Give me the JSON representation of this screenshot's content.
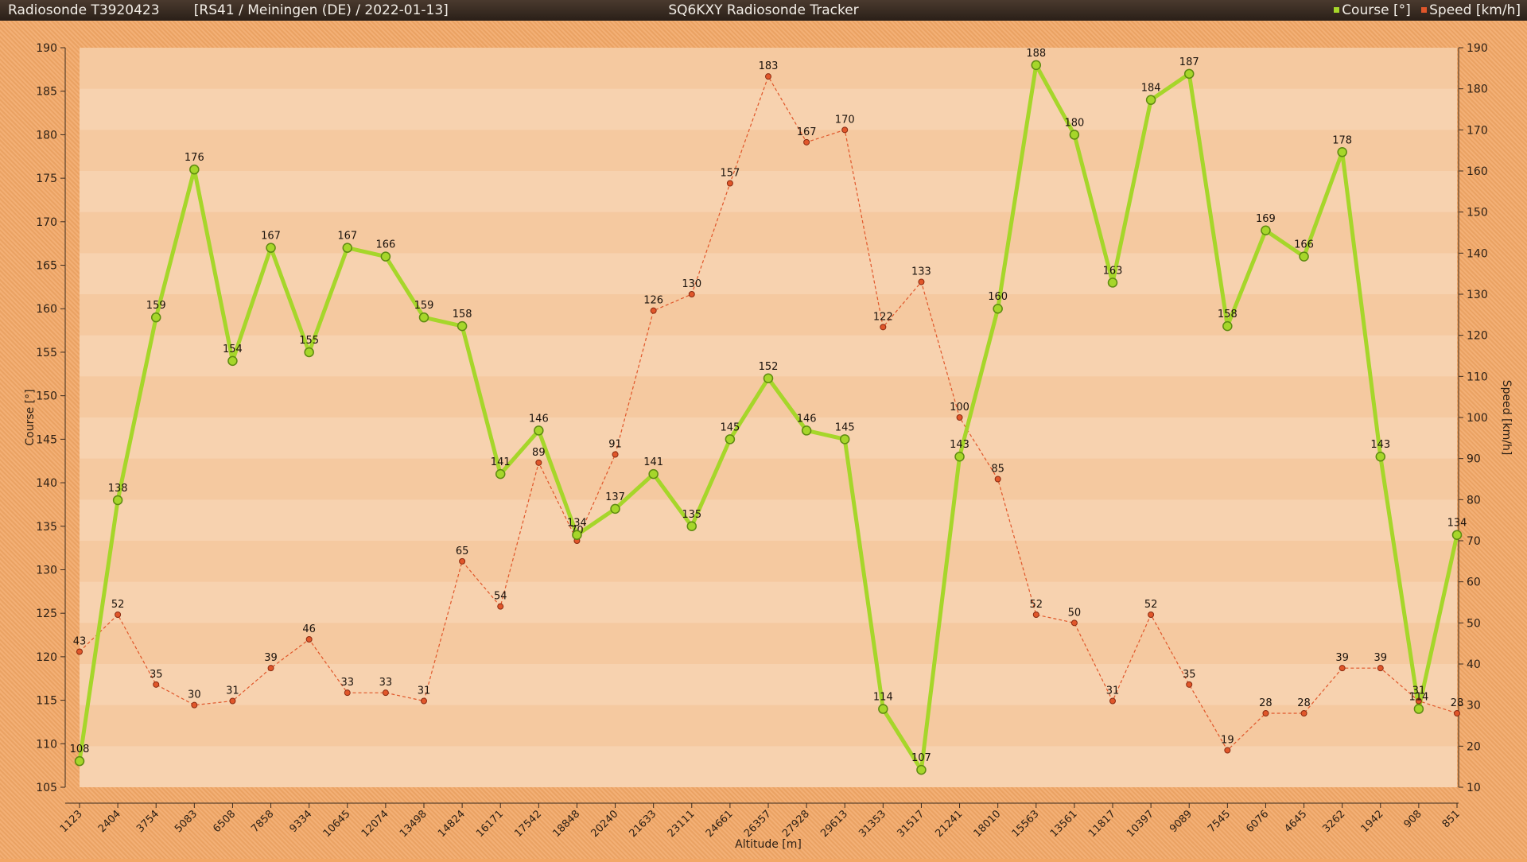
{
  "header": {
    "sonde": "Radiosonde T3920423",
    "info": "[RS41 / Meiningen (DE) / 2022-01-13]",
    "app_title": "SQ6KXY Radiosonde Tracker",
    "legend_course": "Course [°]",
    "legend_speed": "Speed [km/h]"
  },
  "colors": {
    "course": "#a6d62a",
    "speed": "#e0562a",
    "plot_bg": "#f5c9a0",
    "band_light": "#f8d6b5",
    "background": "#f2a766"
  },
  "chart_data": {
    "type": "line",
    "xlabel": "Altitude [m]",
    "ylabel_left": "Course [°]",
    "ylabel_right": "Speed [km/h]",
    "ylim_left": [
      105,
      190
    ],
    "ylim_right": [
      10,
      190
    ],
    "yticks_left": [
      105,
      110,
      115,
      120,
      125,
      130,
      135,
      140,
      145,
      150,
      155,
      160,
      165,
      170,
      175,
      180,
      185,
      190
    ],
    "yticks_right": [
      10,
      20,
      30,
      40,
      50,
      60,
      70,
      80,
      90,
      100,
      110,
      120,
      130,
      140,
      150,
      160,
      170,
      180,
      190
    ],
    "categories": [
      "1123",
      "2404",
      "3754",
      "5083",
      "6508",
      "7858",
      "9334",
      "10645",
      "12074",
      "13498",
      "14824",
      "16171",
      "17542",
      "18848",
      "20240",
      "21633",
      "23111",
      "24661",
      "26357",
      "27928",
      "29613",
      "31353",
      "31517",
      "21241",
      "18010",
      "15563",
      "13561",
      "11817",
      "10397",
      "9089",
      "7545",
      "6076",
      "4645",
      "3262",
      "1942",
      "908",
      "851"
    ],
    "series": [
      {
        "name": "Course [°]",
        "axis": "left",
        "values": [
          108,
          138,
          159,
          176,
          154,
          167,
          155,
          167,
          166,
          159,
          158,
          141,
          146,
          134,
          137,
          141,
          135,
          145,
          152,
          146,
          145,
          114,
          107,
          143,
          160,
          188,
          180,
          163,
          184,
          187,
          158,
          169,
          166,
          178,
          143,
          114,
          134
        ]
      },
      {
        "name": "Speed [km/h]",
        "axis": "right",
        "values": [
          43,
          52,
          35,
          30,
          31,
          39,
          46,
          33,
          33,
          31,
          65,
          54,
          89,
          70,
          91,
          126,
          130,
          157,
          183,
          167,
          170,
          122,
          133,
          100,
          85,
          52,
          50,
          31,
          52,
          35,
          19,
          28,
          28,
          39,
          39,
          31,
          28
        ]
      }
    ]
  }
}
